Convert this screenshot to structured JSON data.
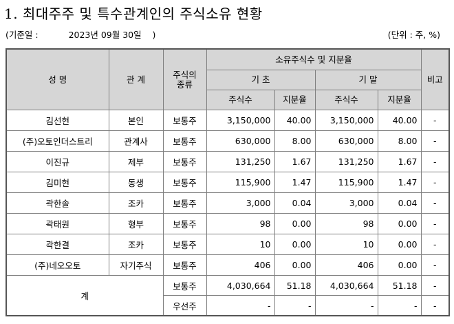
{
  "title": "1. 최대주주 및 특수관계인의 주식소유 현황",
  "basis": {
    "label": "(기준일 :",
    "date": "2023년 09월 30일",
    "close": ")"
  },
  "unit": "(단위 : 주, %)",
  "headers": {
    "name": "성 명",
    "relation": "관 계",
    "stock_type_line1": "주식의",
    "stock_type_line2": "종류",
    "ownership": "소유주식수 및 지분율",
    "start": "기 초",
    "end": "기 말",
    "shares": "주식수",
    "ratio": "지분율",
    "note": "비고"
  },
  "rows": [
    {
      "name": "김선현",
      "relation": "본인",
      "type": "보통주",
      "start_shares": "3,150,000",
      "start_ratio": "40.00",
      "end_shares": "3,150,000",
      "end_ratio": "40.00",
      "note": "-"
    },
    {
      "name": "(주)오토인더스트리",
      "relation": "관계사",
      "type": "보통주",
      "start_shares": "630,000",
      "start_ratio": "8.00",
      "end_shares": "630,000",
      "end_ratio": "8.00",
      "note": "-"
    },
    {
      "name": "이진규",
      "relation": "제부",
      "type": "보통주",
      "start_shares": "131,250",
      "start_ratio": "1.67",
      "end_shares": "131,250",
      "end_ratio": "1.67",
      "note": "-"
    },
    {
      "name": "김미현",
      "relation": "동생",
      "type": "보통주",
      "start_shares": "115,900",
      "start_ratio": "1.47",
      "end_shares": "115,900",
      "end_ratio": "1.47",
      "note": "-"
    },
    {
      "name": "곽한솔",
      "relation": "조카",
      "type": "보통주",
      "start_shares": "3,000",
      "start_ratio": "0.04",
      "end_shares": "3,000",
      "end_ratio": "0.04",
      "note": "-"
    },
    {
      "name": "곽태원",
      "relation": "형부",
      "type": "보통주",
      "start_shares": "98",
      "start_ratio": "0.00",
      "end_shares": "98",
      "end_ratio": "0.00",
      "note": "-"
    },
    {
      "name": "곽한결",
      "relation": "조카",
      "type": "보통주",
      "start_shares": "10",
      "start_ratio": "0.00",
      "end_shares": "10",
      "end_ratio": "0.00",
      "note": "-"
    },
    {
      "name": "(주)네오오토",
      "relation": "자기주식",
      "type": "보통주",
      "start_shares": "406",
      "start_ratio": "0.00",
      "end_shares": "406",
      "end_ratio": "0.00",
      "note": "-"
    }
  ],
  "total": {
    "label": "계",
    "rows": [
      {
        "type": "보통주",
        "start_shares": "4,030,664",
        "start_ratio": "51.18",
        "end_shares": "4,030,664",
        "end_ratio": "51.18",
        "note": "-"
      },
      {
        "type": "우선주",
        "start_shares": "-",
        "start_ratio": "-",
        "end_shares": "-",
        "end_ratio": "-",
        "note": "-"
      }
    ]
  }
}
